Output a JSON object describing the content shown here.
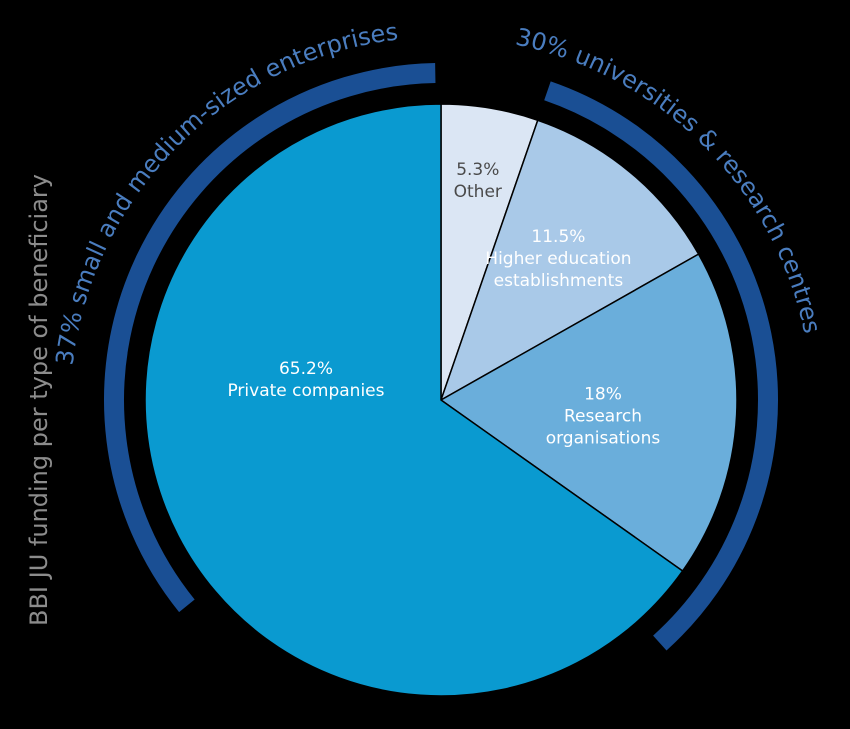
{
  "chart_data": {
    "type": "pie",
    "title": "BBI JU funding per type of beneficiary",
    "slices": [
      {
        "label": "Other",
        "value": 5.3,
        "value_label": "5.3%",
        "color": "#dbe6f4",
        "text_color": "#4a4a4a"
      },
      {
        "label": "Higher education establishments",
        "label_lines": [
          "Higher education",
          "establishments"
        ],
        "value": 11.5,
        "value_label": "11.5%",
        "color": "#a9c9e8",
        "text_color": "#ffffff"
      },
      {
        "label": "Research organisations",
        "label_lines": [
          "Research",
          "organisations"
        ],
        "value": 18,
        "value_label": "18%",
        "color": "#6aaedb",
        "text_color": "#ffffff"
      },
      {
        "label": "Private companies",
        "value": 65.2,
        "value_label": "65.2%",
        "color": "#0a9ad0",
        "text_color": "#ffffff"
      }
    ],
    "groups": [
      {
        "label": "37% small and medium-sized enterprises",
        "color": "#1a4f94"
      },
      {
        "label": "30% universities & research centres",
        "color": "#1a4f94"
      }
    ],
    "label_color": "#4a7dbf"
  }
}
